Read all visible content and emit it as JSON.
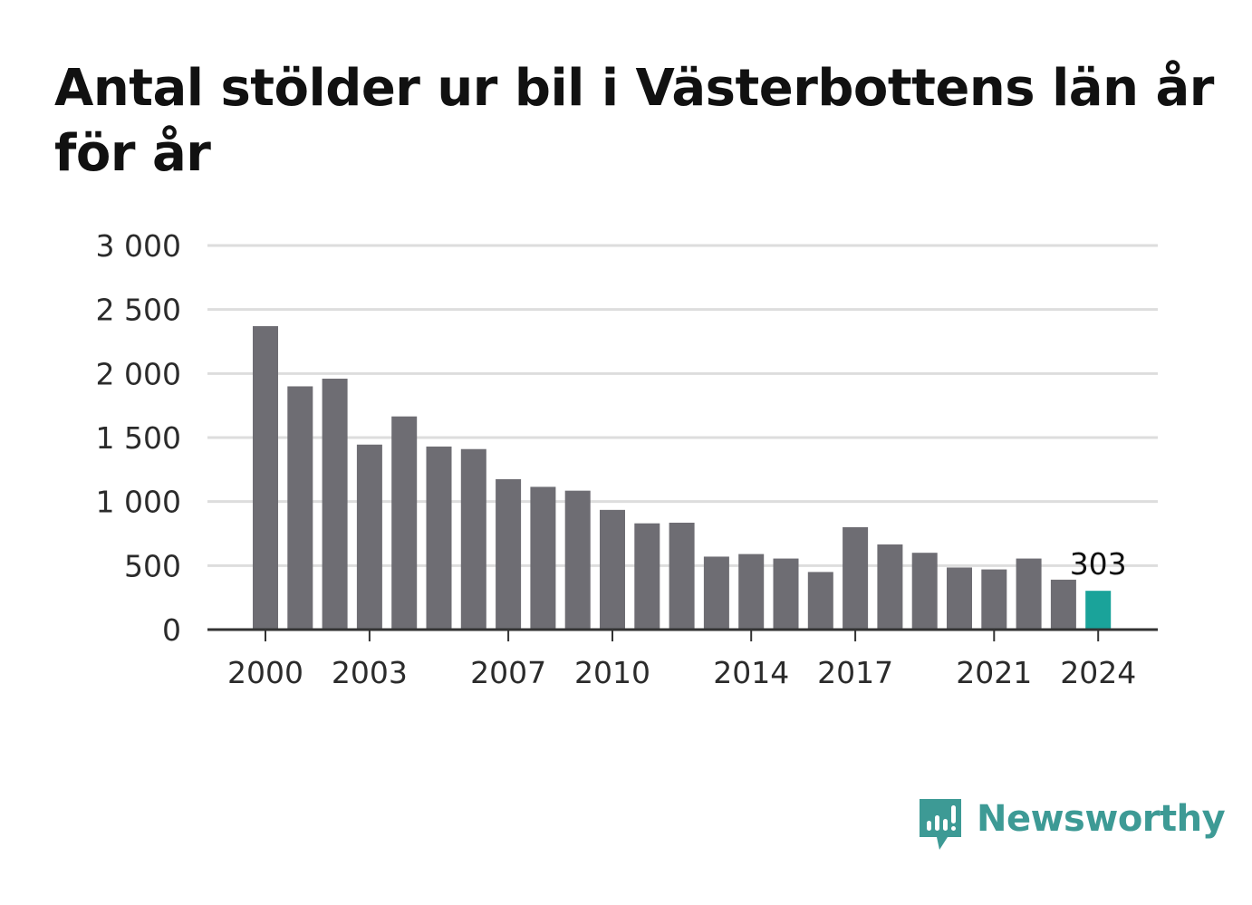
{
  "title": "Antal stölder ur bil i Västerbottens län år för år",
  "brand": {
    "name": "Newsworthy",
    "icon": "newsworthy-logo-icon",
    "color": "#3d9a95"
  },
  "colors": {
    "bar": "#6e6d73",
    "highlight": "#1aa39a",
    "grid": "#dddddd",
    "axis": "#333333"
  },
  "chart_data": {
    "type": "bar",
    "title": "Antal stölder ur bil i Västerbottens län år för år",
    "xlabel": "",
    "ylabel": "",
    "categories": [
      2000,
      2001,
      2002,
      2003,
      2004,
      2005,
      2006,
      2007,
      2008,
      2009,
      2010,
      2011,
      2012,
      2013,
      2014,
      2015,
      2016,
      2017,
      2018,
      2019,
      2020,
      2021,
      2022,
      2023,
      2024
    ],
    "values": [
      2370,
      1900,
      1960,
      1445,
      1665,
      1430,
      1410,
      1175,
      1115,
      1085,
      935,
      830,
      835,
      570,
      590,
      555,
      450,
      800,
      665,
      600,
      485,
      470,
      555,
      390,
      303
    ],
    "ylim": [
      0,
      3000
    ],
    "yticks": [
      0,
      500,
      1000,
      1500,
      2000,
      2500,
      3000
    ],
    "ytick_labels": [
      "0",
      "500",
      "1 000",
      "1 500",
      "2 000",
      "2 500",
      "3 000"
    ],
    "xticks": [
      2000,
      2003,
      2007,
      2010,
      2014,
      2017,
      2021,
      2024
    ],
    "xtick_labels": [
      "2000",
      "2003",
      "2007",
      "2010",
      "2014",
      "2017",
      "2021",
      "2024"
    ],
    "highlight_index": 24,
    "data_labels": [
      {
        "index": 24,
        "text": "303"
      }
    ],
    "grid": true,
    "legend": "none"
  }
}
